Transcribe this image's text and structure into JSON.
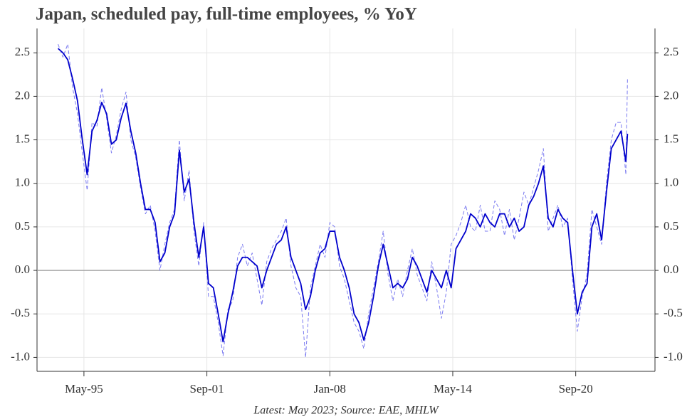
{
  "chart_data": {
    "type": "line",
    "title": "Japan, scheduled pay, full-time employees, % YoY",
    "caption": "Latest: May 2023; Source: EAE, MHLW",
    "x": [
      "1994-01",
      "1994-04",
      "1994-07",
      "1994-10",
      "1995-01",
      "1995-04",
      "1995-07",
      "1995-10",
      "1996-01",
      "1996-04",
      "1996-07",
      "1996-10",
      "1997-01",
      "1997-04",
      "1997-07",
      "1997-10",
      "1998-01",
      "1998-04",
      "1998-07",
      "1998-10",
      "1999-01",
      "1999-04",
      "1999-07",
      "1999-10",
      "2000-01",
      "2000-04",
      "2000-07",
      "2000-10",
      "2001-01",
      "2001-04",
      "2001-07",
      "2001-10",
      "2002-01",
      "2002-04",
      "2002-07",
      "2002-10",
      "2003-01",
      "2003-04",
      "2003-07",
      "2003-10",
      "2004-01",
      "2004-04",
      "2004-07",
      "2004-10",
      "2005-01",
      "2005-04",
      "2005-07",
      "2005-10",
      "2006-01",
      "2006-04",
      "2006-07",
      "2006-10",
      "2007-01",
      "2007-04",
      "2007-07",
      "2007-10",
      "2008-01",
      "2008-04",
      "2008-07",
      "2008-10",
      "2009-01",
      "2009-04",
      "2009-07",
      "2009-10",
      "2010-01",
      "2010-04",
      "2010-07",
      "2010-10",
      "2011-01",
      "2011-04",
      "2011-07",
      "2011-10",
      "2012-01",
      "2012-04",
      "2012-07",
      "2012-10",
      "2013-01",
      "2013-04",
      "2013-07",
      "2013-10",
      "2014-01",
      "2014-04",
      "2014-07",
      "2014-10",
      "2015-01",
      "2015-04",
      "2015-07",
      "2015-10",
      "2016-01",
      "2016-04",
      "2016-07",
      "2016-10",
      "2017-01",
      "2017-04",
      "2017-07",
      "2017-10",
      "2018-01",
      "2018-04",
      "2018-07",
      "2018-10",
      "2019-01",
      "2019-04",
      "2019-07",
      "2019-10",
      "2020-01",
      "2020-04",
      "2020-07",
      "2020-10",
      "2021-01",
      "2021-04",
      "2021-07",
      "2021-10",
      "2022-01",
      "2022-04",
      "2022-07",
      "2022-10",
      "2023-01",
      "2023-04",
      "2023-05"
    ],
    "series": [
      {
        "color": "#7b7bf0",
        "dash": "5,3",
        "width": 1,
        "values": [
          2.6,
          2.45,
          2.6,
          2.1,
          1.8,
          1.35,
          0.92,
          1.7,
          1.65,
          2.1,
          1.75,
          1.35,
          1.55,
          1.85,
          2.05,
          1.5,
          1.3,
          0.95,
          0.65,
          0.75,
          0.45,
          0.0,
          0.3,
          0.55,
          0.7,
          1.5,
          0.8,
          1.15,
          0.45,
          0.05,
          0.55,
          -0.3,
          -0.3,
          -0.6,
          -0.98,
          -0.45,
          -0.35,
          0.15,
          0.3,
          0.05,
          0.2,
          -0.1,
          -0.4,
          0.1,
          0.25,
          0.35,
          0.45,
          0.6,
          0.05,
          -0.2,
          -0.3,
          -1.0,
          -0.2,
          0.05,
          0.3,
          0.15,
          0.55,
          0.5,
          0.05,
          -0.1,
          -0.35,
          -0.6,
          -0.7,
          -0.9,
          -0.5,
          -0.2,
          0.1,
          0.45,
          -0.05,
          -0.35,
          -0.1,
          -0.3,
          0.0,
          0.25,
          -0.05,
          -0.2,
          -0.35,
          0.1,
          -0.2,
          -0.55,
          -0.25,
          0.3,
          0.4,
          0.55,
          0.75,
          0.5,
          0.45,
          0.75,
          0.45,
          0.45,
          0.8,
          0.7,
          0.4,
          0.7,
          0.35,
          0.6,
          0.9,
          0.75,
          0.95,
          1.15,
          1.4,
          0.45,
          0.6,
          0.75,
          0.5,
          0.6,
          -0.1,
          -0.7,
          -0.3,
          -0.05,
          0.7,
          0.5,
          0.3,
          1.0,
          1.5,
          1.7,
          1.7,
          1.1,
          2.2
        ]
      },
      {
        "color": "#0000cc",
        "width": 1.8,
        "values": [
          2.55,
          2.5,
          2.42,
          2.2,
          1.95,
          1.5,
          1.1,
          1.6,
          1.72,
          1.93,
          1.8,
          1.45,
          1.5,
          1.75,
          1.92,
          1.6,
          1.35,
          1.0,
          0.7,
          0.7,
          0.55,
          0.1,
          0.2,
          0.5,
          0.65,
          1.38,
          0.9,
          1.05,
          0.55,
          0.15,
          0.5,
          -0.15,
          -0.2,
          -0.5,
          -0.82,
          -0.5,
          -0.25,
          0.05,
          0.15,
          0.15,
          0.1,
          0.05,
          -0.2,
          0.0,
          0.15,
          0.3,
          0.35,
          0.5,
          0.15,
          0.0,
          -0.15,
          -0.45,
          -0.3,
          0.0,
          0.2,
          0.25,
          0.45,
          0.45,
          0.15,
          0.0,
          -0.2,
          -0.5,
          -0.6,
          -0.8,
          -0.6,
          -0.3,
          0.05,
          0.3,
          0.05,
          -0.2,
          -0.15,
          -0.2,
          -0.1,
          0.15,
          0.05,
          -0.1,
          -0.25,
          0.0,
          -0.1,
          -0.2,
          0.0,
          -0.2,
          0.25,
          0.35,
          0.45,
          0.65,
          0.6,
          0.5,
          0.65,
          0.55,
          0.5,
          0.65,
          0.65,
          0.5,
          0.6,
          0.45,
          0.5,
          0.75,
          0.85,
          1.0,
          1.2,
          0.6,
          0.5,
          0.7,
          0.6,
          0.55,
          0.0,
          -0.5,
          -0.25,
          -0.15,
          0.5,
          0.65,
          0.35,
          0.9,
          1.4,
          1.5,
          1.6,
          1.25,
          1.57
        ]
      }
    ],
    "xlim": [
      "1992-12",
      "2024-10"
    ],
    "xticks": [
      {
        "value": "1995-05",
        "label": "May-95"
      },
      {
        "value": "2001-09",
        "label": "Sep-01"
      },
      {
        "value": "2008-01",
        "label": "Jan-08"
      },
      {
        "value": "2014-05",
        "label": "May-14"
      },
      {
        "value": "2020-09",
        "label": "Sep-20"
      }
    ],
    "ylim": [
      -1.16,
      2.78
    ],
    "yticks": [
      {
        "value": -1,
        "label": "-1.0"
      },
      -0.5,
      {
        "value": 0,
        "label": "0.0"
      },
      0.5,
      {
        "value": 1,
        "label": "1.0"
      },
      1.5,
      {
        "value": 2,
        "label": "2.0"
      },
      2.5
    ],
    "hline": 0,
    "grid": true
  }
}
